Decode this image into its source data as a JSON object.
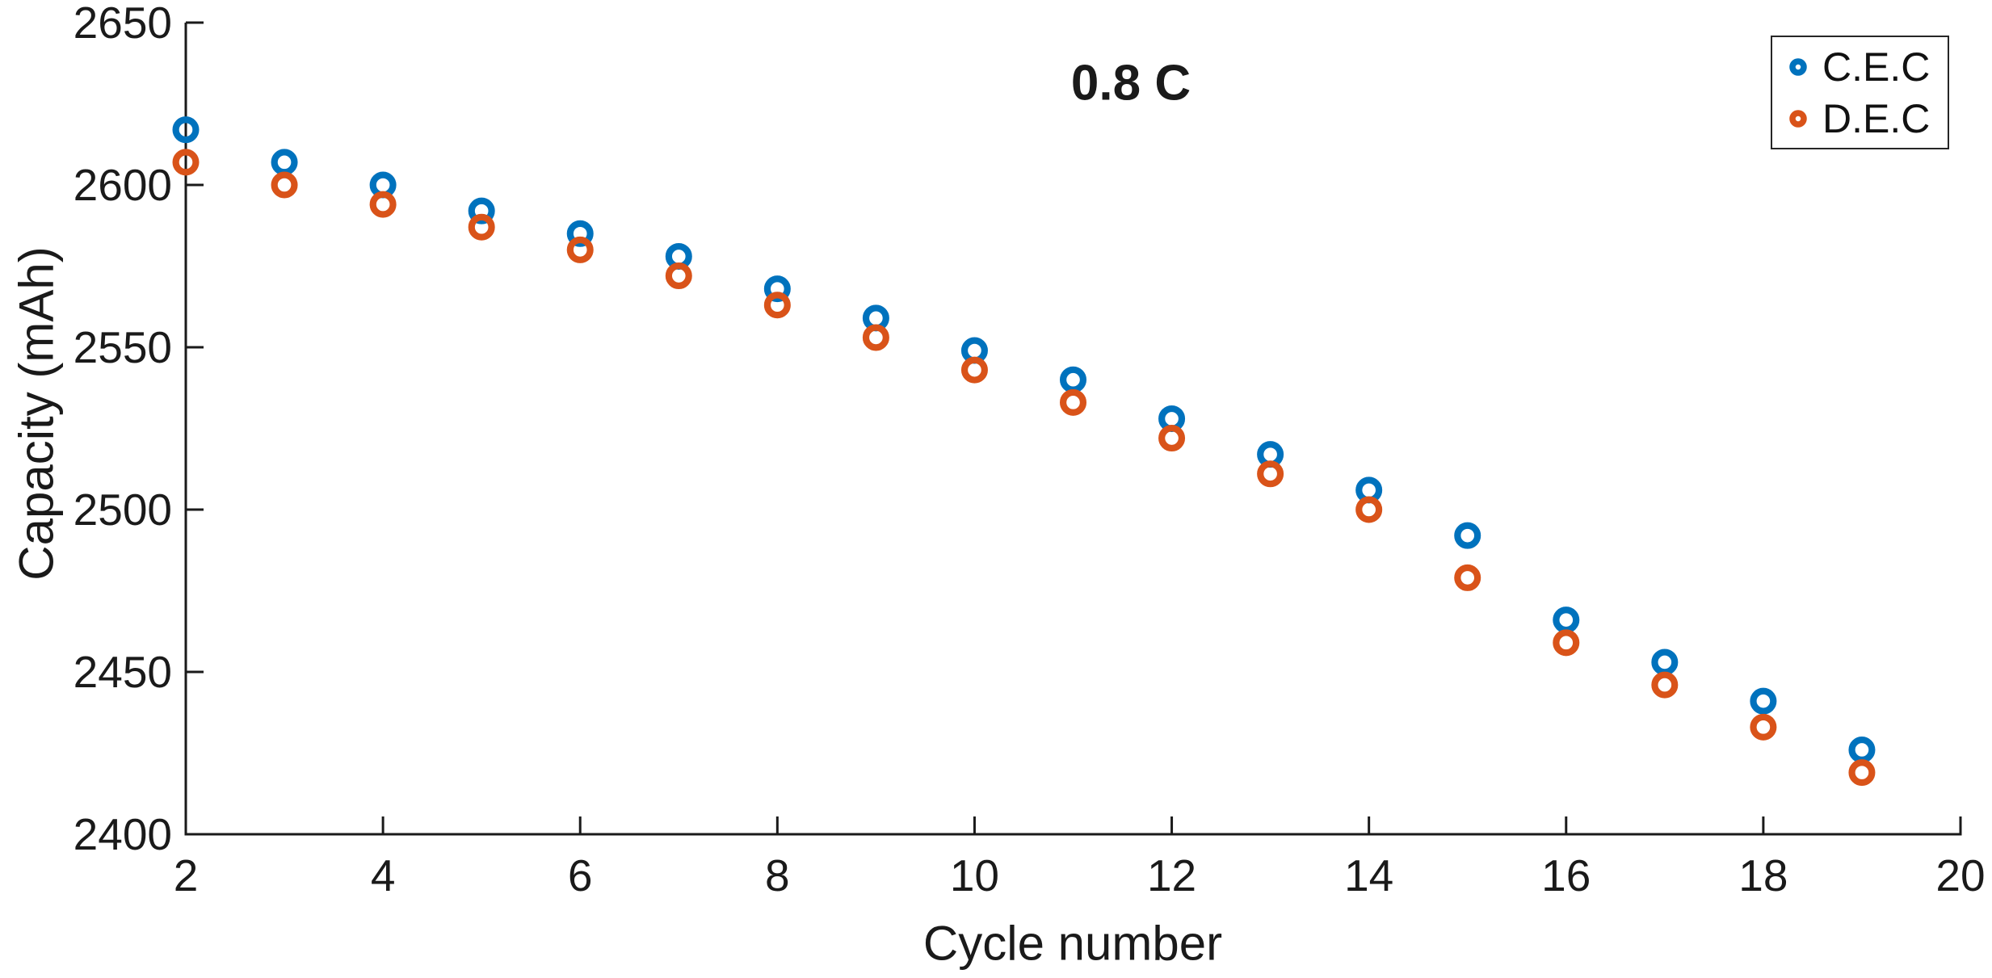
{
  "figure": {
    "title": "0.8 C",
    "background": "#ffffff",
    "axis_color": "#1a1a1a",
    "text_color": "#1a1a1a"
  },
  "legend": {
    "border_color": "#262626",
    "position": "northeast"
  },
  "chart_data": {
    "type": "scatter",
    "title": "0.8 C",
    "xlabel": "Cycle number",
    "ylabel": "Capacity (mAh)",
    "xlim": [
      2,
      20
    ],
    "ylim": [
      2400,
      2650
    ],
    "x_ticks": [
      2,
      4,
      6,
      8,
      10,
      12,
      14,
      16,
      18,
      20
    ],
    "y_ticks": [
      2400,
      2450,
      2500,
      2550,
      2600,
      2650
    ],
    "grid": false,
    "legend_position": "northeast",
    "marker": "o",
    "x": [
      2,
      3,
      4,
      5,
      6,
      7,
      8,
      9,
      10,
      11,
      12,
      13,
      14,
      15,
      16,
      17,
      18,
      19
    ],
    "series": [
      {
        "name": "C.E.C",
        "color": "#0072BD",
        "values": [
          2617,
          2607,
          2600,
          2592,
          2585,
          2578,
          2568,
          2559,
          2549,
          2540,
          2528,
          2517,
          2506,
          2492,
          2466,
          2453,
          2441,
          2426
        ]
      },
      {
        "name": "D.E.C",
        "color": "#D95319",
        "values": [
          2607,
          2600,
          2594,
          2587,
          2580,
          2572,
          2563,
          2553,
          2543,
          2533,
          2522,
          2511,
          2500,
          2479,
          2459,
          2446,
          2433,
          2419
        ]
      }
    ]
  }
}
